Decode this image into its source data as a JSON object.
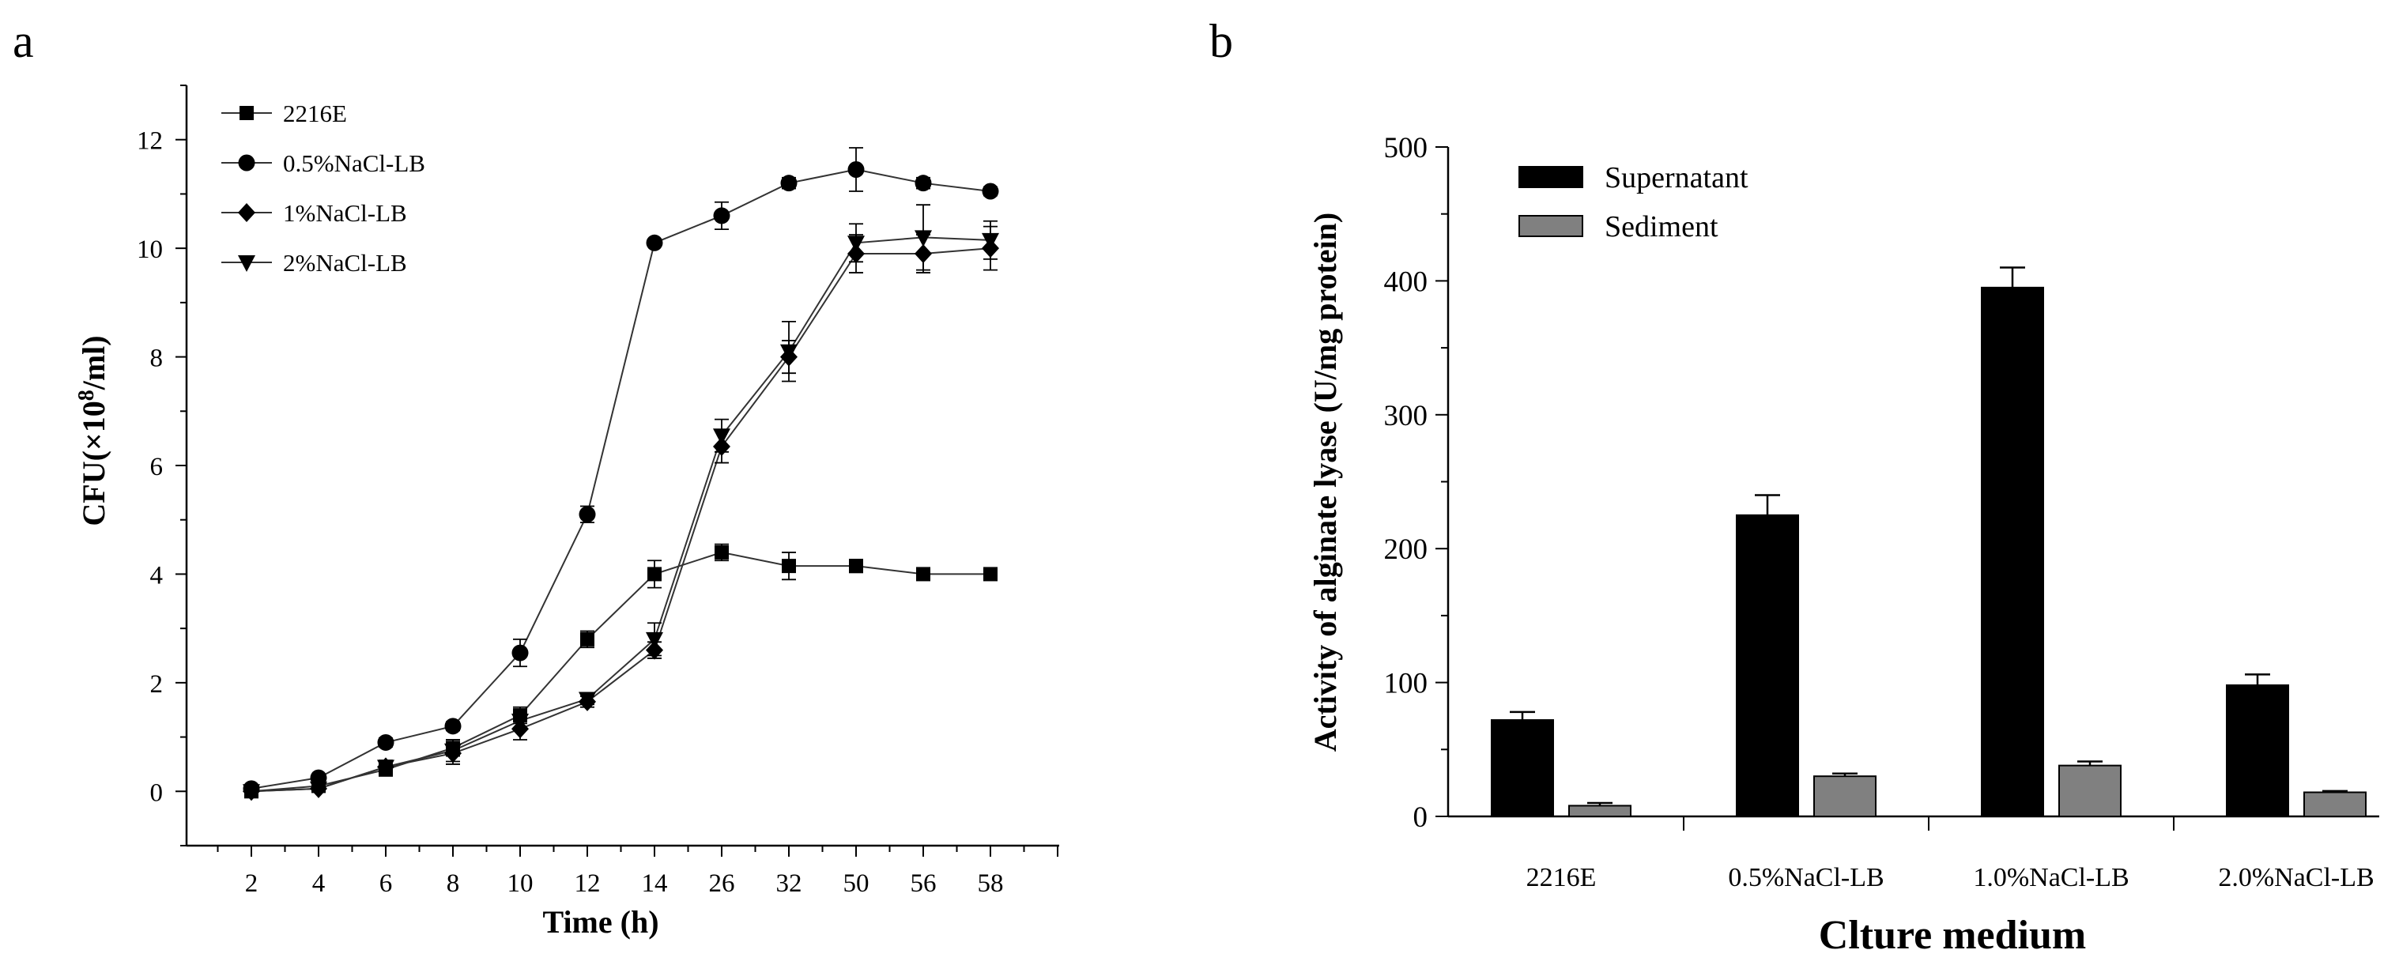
{
  "panel_labels": {
    "a": "a",
    "b": "b"
  },
  "chart_data": [
    {
      "type": "line",
      "panel": "a",
      "title": "",
      "xlabel": "Time (h)",
      "ylabel_prefix": "CFU(×10",
      "ylabel_exp": "8",
      "ylabel_suffix": "/ml)",
      "categories": [
        "2",
        "4",
        "6",
        "8",
        "10",
        "12",
        "14",
        "26",
        "32",
        "50",
        "56",
        "58"
      ],
      "ylim": [
        -1,
        13
      ],
      "yticks": [
        0,
        2,
        4,
        6,
        8,
        10,
        12
      ],
      "legend_position": "top-left",
      "series": [
        {
          "name": "2216E",
          "marker": "square",
          "values": [
            0.0,
            0.1,
            0.4,
            0.8,
            1.4,
            2.8,
            4.0,
            4.4,
            4.15,
            4.15,
            4.0,
            4.0
          ],
          "errors": [
            0.05,
            0.05,
            0.1,
            0.15,
            0.15,
            0.15,
            0.25,
            0.15,
            0.25,
            0.12,
            0.08,
            0.08
          ]
        },
        {
          "name": "0.5%NaCl-LB",
          "marker": "circle",
          "values": [
            0.05,
            0.25,
            0.9,
            1.2,
            2.55,
            5.1,
            10.1,
            10.6,
            11.2,
            11.45,
            11.2,
            11.05
          ],
          "errors": [
            0.05,
            0.05,
            0.08,
            0.08,
            0.25,
            0.15,
            0.05,
            0.25,
            0.1,
            0.4,
            0.1,
            0.08
          ]
        },
        {
          "name": "1%NaCl-LB",
          "marker": "diamond",
          "values": [
            0.0,
            0.05,
            0.45,
            0.7,
            1.15,
            1.65,
            2.6,
            6.35,
            8.0,
            9.9,
            9.9,
            10.0
          ],
          "errors": [
            0.05,
            0.05,
            0.12,
            0.2,
            0.2,
            0.1,
            0.15,
            0.3,
            0.3,
            0.35,
            0.35,
            0.4
          ]
        },
        {
          "name": "2%NaCl-LB",
          "marker": "triangle-down",
          "values": [
            0.0,
            0.05,
            0.45,
            0.75,
            1.3,
            1.7,
            2.8,
            6.55,
            8.1,
            10.1,
            10.2,
            10.15
          ],
          "errors": [
            0.05,
            0.05,
            0.12,
            0.2,
            0.15,
            0.1,
            0.3,
            0.3,
            0.55,
            0.35,
            0.6,
            0.35
          ]
        }
      ]
    },
    {
      "type": "bar",
      "panel": "b",
      "title": "",
      "xlabel": "Clture medium",
      "ylabel": "Activity of alginate lyase (U/mg protein)",
      "categories": [
        "2216E",
        "0.5%NaCl-LB",
        "1.0%NaCl-LB",
        "2.0%NaCl-LB"
      ],
      "ylim": [
        0,
        500
      ],
      "yticks": [
        0,
        100,
        200,
        300,
        400,
        500
      ],
      "legend_position": "top-left",
      "series": [
        {
          "name": "Supernatant",
          "color": "#000000",
          "values": [
            72,
            225,
            395,
            98
          ],
          "errors": [
            6,
            15,
            15,
            8
          ]
        },
        {
          "name": "Sediment",
          "color": "#808080",
          "values": [
            8,
            30,
            38,
            18
          ],
          "errors": [
            2,
            2,
            3,
            1
          ]
        }
      ]
    }
  ]
}
